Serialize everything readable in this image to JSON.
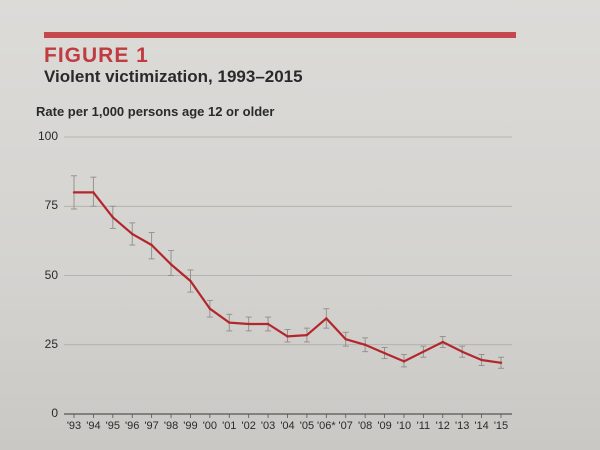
{
  "figure": {
    "label": "FIGURE 1",
    "title": "Violent victimization, 1993–2015",
    "ylabel": "Rate per 1,000 persons age 12 or older",
    "accent_color": "#c4484c",
    "line_color": "#b3262b"
  },
  "chart_data": {
    "type": "line",
    "title": "Violent victimization, 1993–2015",
    "ylabel": "Rate per 1,000 persons age 12 or older",
    "xlabel": "",
    "ylim": [
      0,
      100
    ],
    "yticks": [
      "0",
      "25",
      "50",
      "75",
      "100"
    ],
    "grid": "horizontal",
    "categories": [
      "'93",
      "'94",
      "'95",
      "'96",
      "'97",
      "'98",
      "'99",
      "'00",
      "'01",
      "'02",
      "'03",
      "'04",
      "'05",
      "'06*",
      "'07",
      "'08",
      "'09",
      "'10",
      "'11",
      "'12",
      "'13",
      "'14",
      "'15"
    ],
    "values": [
      80,
      80,
      71,
      65,
      61,
      54,
      48,
      38,
      33,
      32.5,
      32.5,
      28,
      28.5,
      34.5,
      27,
      25,
      22,
      19,
      22.5,
      26,
      22.5,
      19.5,
      18.5
    ],
    "error_low": [
      74,
      75,
      67,
      61,
      56,
      50,
      44,
      35,
      30,
      30,
      30,
      26,
      26,
      31,
      24.5,
      22.5,
      20,
      17,
      20.5,
      24,
      20.5,
      17.5,
      16.5
    ],
    "error_high": [
      86,
      85.5,
      75,
      69,
      65.5,
      59,
      52,
      41,
      36,
      35,
      35,
      30.5,
      31,
      38,
      29.5,
      27.5,
      24,
      21.5,
      24.5,
      28,
      24.5,
      21.5,
      20.5
    ]
  }
}
